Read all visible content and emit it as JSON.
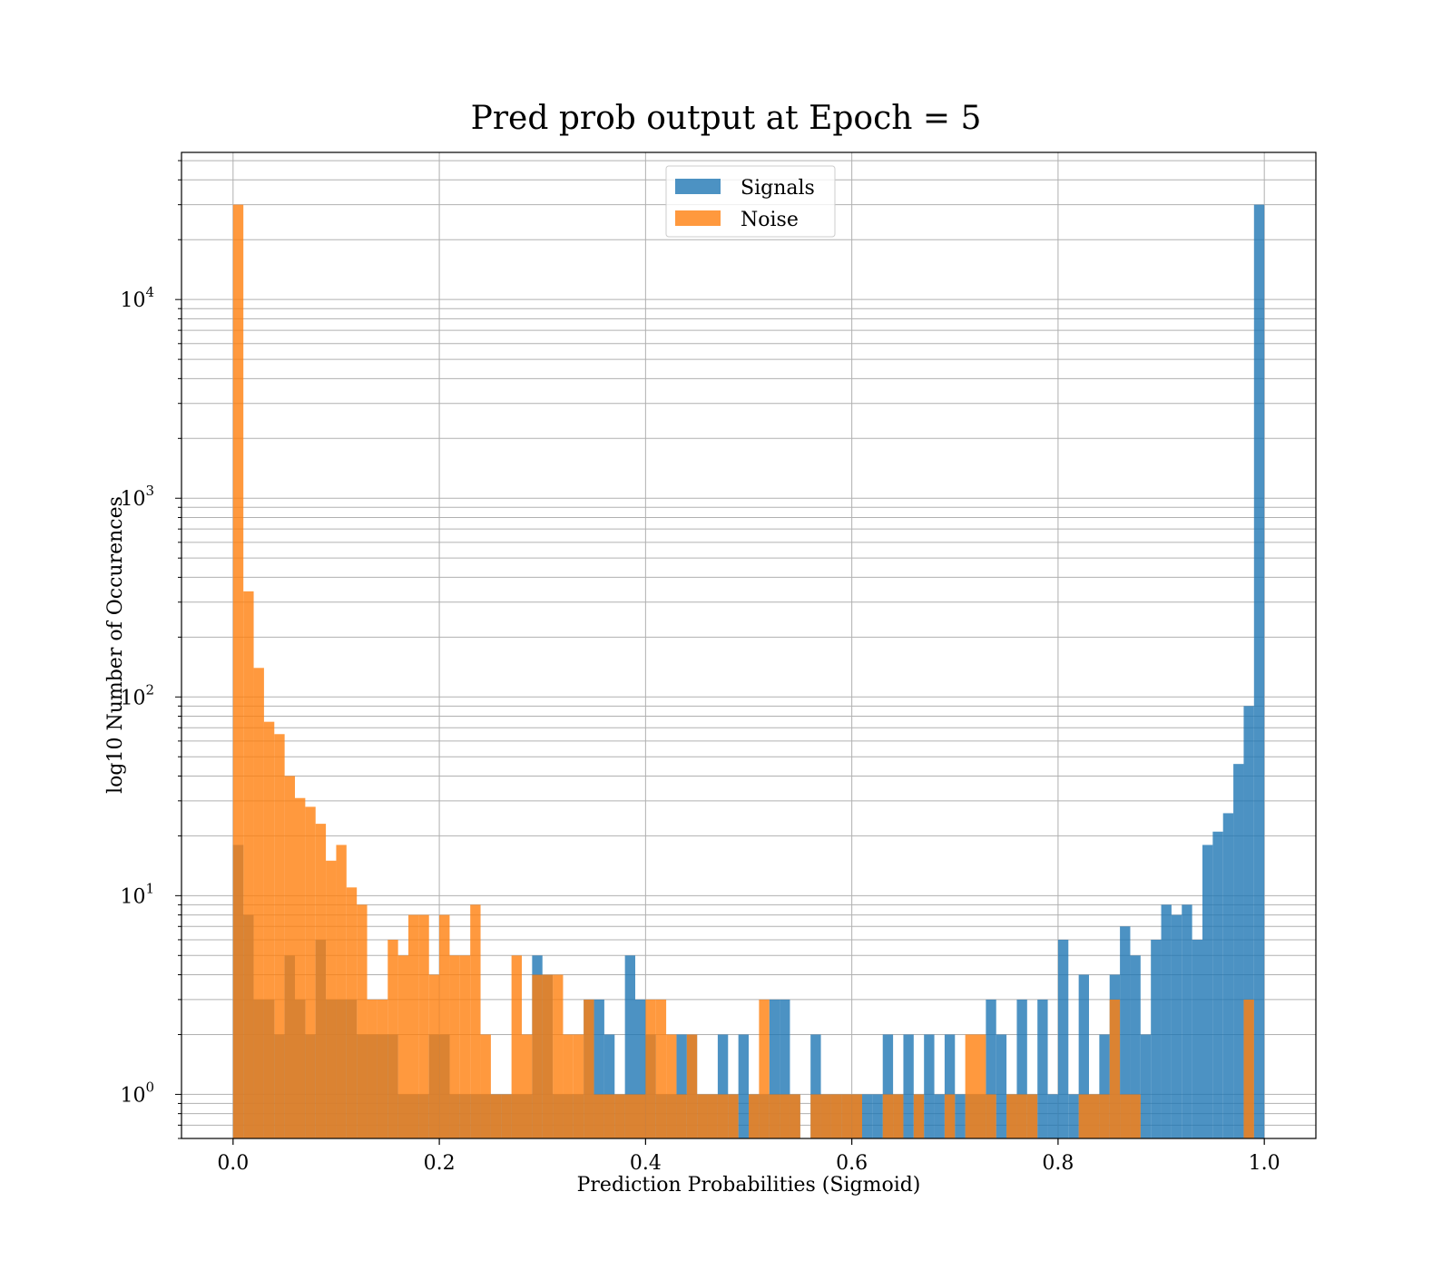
{
  "chart_data": {
    "type": "bar",
    "title": "Pred prob output at Epoch = 5",
    "xlabel": "Prediction Probabilities (Sigmoid)",
    "ylabel": "log10 Number of Occurences",
    "yscale": "log",
    "xlim": [
      -0.05,
      1.05
    ],
    "ylim": [
      0.6,
      55000
    ],
    "xticks": [
      0.0,
      0.2,
      0.4,
      0.6,
      0.8,
      1.0
    ],
    "xtick_labels": [
      "0.0",
      "0.2",
      "0.4",
      "0.6",
      "0.8",
      "1.0"
    ],
    "yticks": [
      1,
      10,
      100,
      1000,
      10000
    ],
    "ytick_labels": [
      {
        "base": "10",
        "exp": "0"
      },
      {
        "base": "10",
        "exp": "1"
      },
      {
        "base": "10",
        "exp": "2"
      },
      {
        "base": "10",
        "exp": "3"
      },
      {
        "base": "10",
        "exp": "4"
      }
    ],
    "grid": true,
    "legend_position": "upper center",
    "bin_range": [
      0,
      1
    ],
    "bins": 100,
    "series": [
      {
        "name": "Signals",
        "color": "#1f77b4",
        "alpha": 0.8,
        "counts": [
          18,
          8,
          3,
          3,
          2,
          5,
          3,
          2,
          6,
          3,
          3,
          3,
          2,
          2,
          2,
          2,
          1,
          1,
          1,
          2,
          2,
          1,
          1,
          1,
          1,
          1,
          1,
          1,
          1,
          5,
          4,
          1,
          1,
          1,
          3,
          3,
          2,
          1,
          5,
          3,
          2,
          1,
          1,
          2,
          2,
          1,
          1,
          2,
          1,
          2,
          1,
          1,
          3,
          3,
          1,
          0,
          2,
          1,
          1,
          1,
          1,
          1,
          1,
          2,
          1,
          2,
          1,
          2,
          1,
          2,
          1,
          1,
          1,
          3,
          2,
          1,
          3,
          1,
          3,
          1,
          6,
          1,
          4,
          1,
          2,
          4,
          7,
          5,
          2,
          6,
          9,
          8,
          9,
          6,
          18,
          21,
          26,
          46,
          90,
          30000
        ]
      },
      {
        "name": "Noise",
        "color": "#ff7f0e",
        "alpha": 0.8,
        "counts": [
          30000,
          340,
          140,
          75,
          65,
          40,
          31,
          28,
          23,
          15,
          18,
          11,
          9,
          3,
          3,
          6,
          5,
          8,
          8,
          4,
          8,
          5,
          5,
          9,
          2,
          1,
          1,
          5,
          2,
          4,
          4,
          4,
          2,
          2,
          3,
          1,
          1,
          1,
          1,
          1,
          3,
          3,
          2,
          1,
          2,
          1,
          1,
          1,
          1,
          0,
          1,
          3,
          1,
          1,
          1,
          0,
          1,
          1,
          1,
          1,
          1,
          0,
          0,
          1,
          1,
          0,
          1,
          0,
          0,
          1,
          0,
          2,
          2,
          1,
          0,
          1,
          1,
          1,
          0,
          0,
          0,
          0,
          1,
          1,
          1,
          3,
          1,
          1,
          0,
          0,
          0,
          0,
          0,
          0,
          0,
          0,
          0,
          0,
          3,
          0
        ]
      }
    ]
  }
}
